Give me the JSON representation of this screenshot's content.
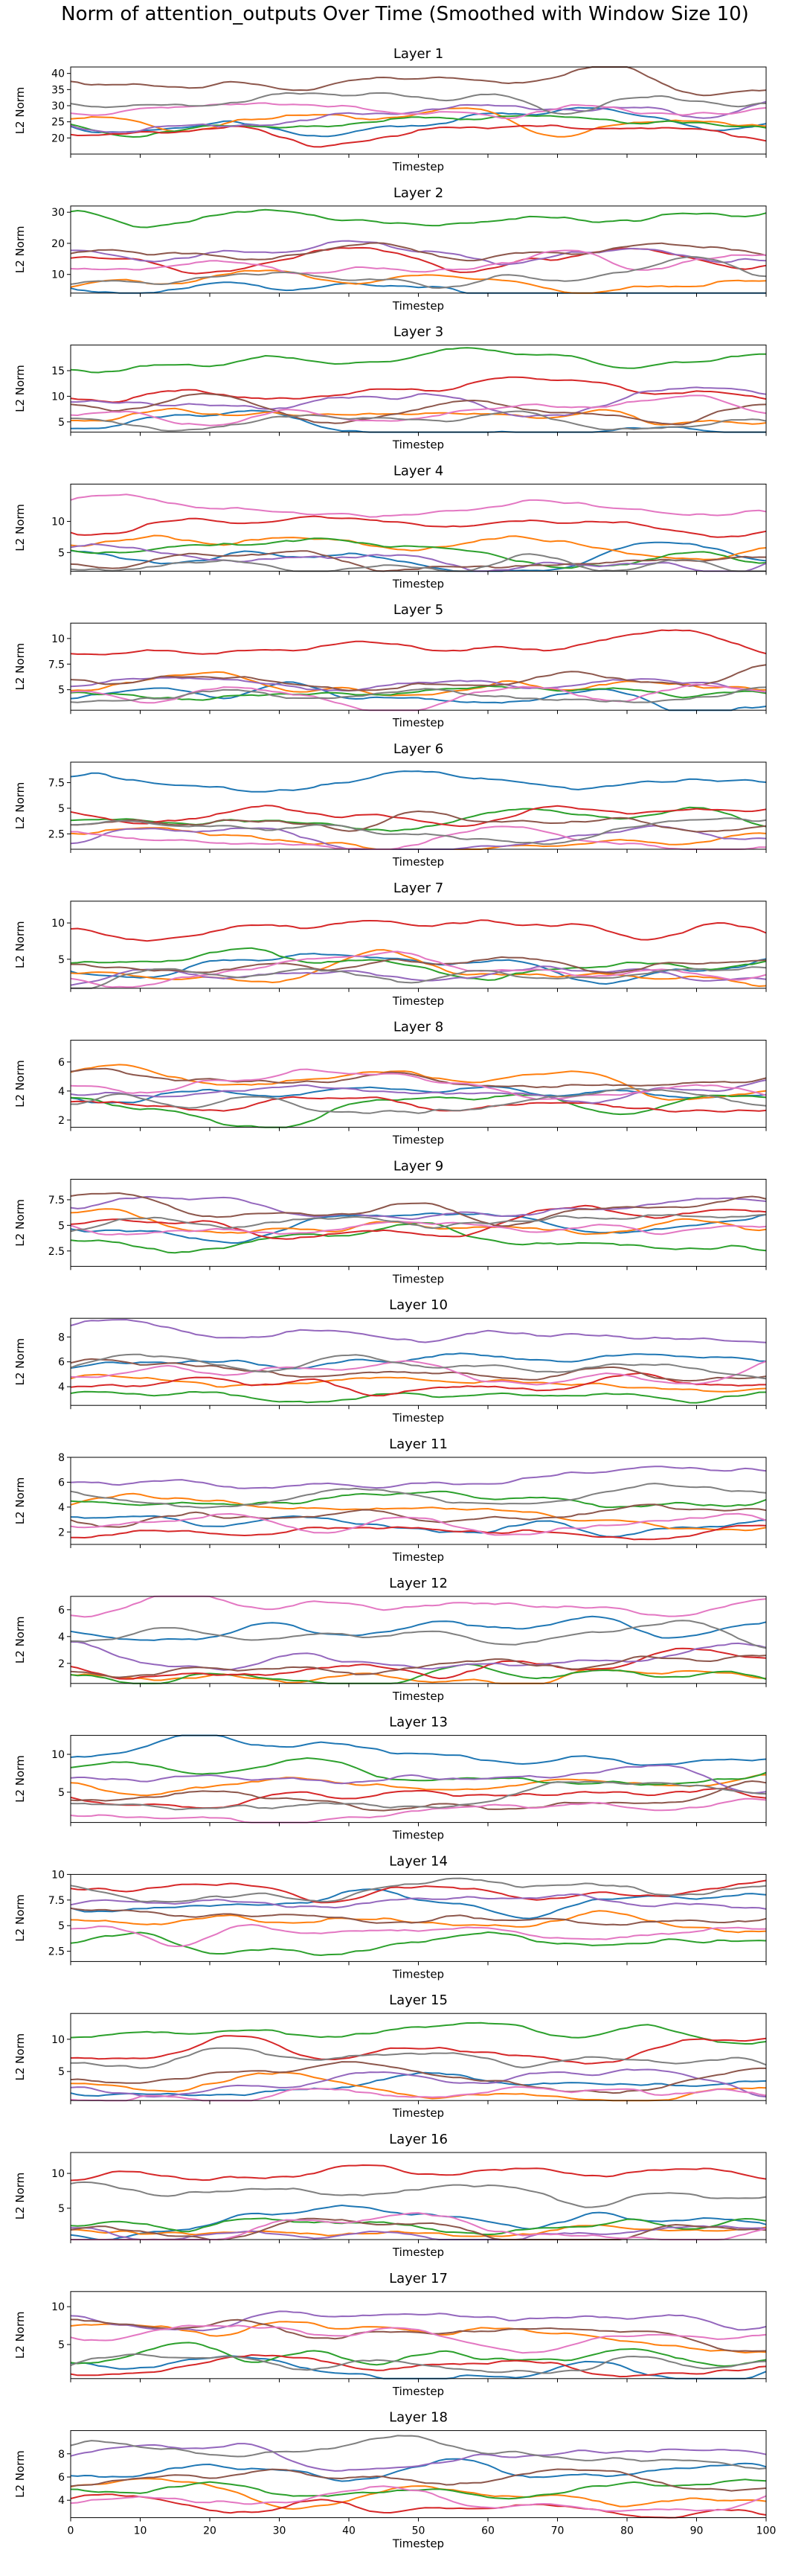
{
  "title": "Norm of attention_outputs Over Time (Smoothed with Window Size 10)",
  "chart_data": {
    "type": "line",
    "xlabel": "Timestep",
    "ylabel": "L2 Norm",
    "xlim": [
      0,
      100
    ],
    "x_ticks": [
      0,
      10,
      20,
      30,
      40,
      50,
      60,
      70,
      80,
      90,
      100
    ],
    "x_tick_labels_shown_only_on_last": true,
    "series_colors": [
      "#1f77b4",
      "#ff7f0e",
      "#2ca02c",
      "#d62728",
      "#9467bd",
      "#8c564b",
      "#e377c2",
      "#7f7f7f"
    ],
    "legend": "none",
    "grid": false,
    "subplots": [
      {
        "title": "Layer 1",
        "ylim": [
          15,
          42
        ],
        "yticks": [
          20,
          25,
          30,
          35,
          40
        ],
        "series_means": [
          26,
          25,
          23,
          22,
          26,
          37,
          28,
          31
        ]
      },
      {
        "title": "Layer 2",
        "ylim": [
          4,
          32
        ],
        "yticks": [
          10,
          20,
          30
        ],
        "series_means": [
          6,
          10,
          27,
          16,
          18,
          17,
          13,
          8
        ]
      },
      {
        "title": "Layer 3",
        "ylim": [
          3,
          20
        ],
        "yticks": [
          5,
          10,
          15
        ],
        "series_means": [
          4,
          6,
          16,
          10,
          9,
          8,
          7,
          5
        ]
      },
      {
        "title": "Layer 4",
        "ylim": [
          2,
          16
        ],
        "yticks": [
          5,
          10
        ],
        "series_means": [
          4.5,
          6,
          5,
          9,
          3.5,
          3.2,
          13,
          3
        ]
      },
      {
        "title": "Layer 5",
        "ylim": [
          3,
          11.5
        ],
        "yticks": [
          5.0,
          7.5,
          10.0
        ],
        "series_means": [
          4.5,
          5.5,
          4.5,
          9,
          5.5,
          6,
          4.5,
          4.2
        ]
      },
      {
        "title": "Layer 6",
        "ylim": [
          1,
          9.5
        ],
        "yticks": [
          2.5,
          5.0,
          7.5
        ],
        "series_means": [
          7.5,
          2.5,
          3.5,
          4.5,
          1.8,
          3.5,
          2,
          3
        ]
      },
      {
        "title": "Layer 7",
        "ylim": [
          1,
          13
        ],
        "yticks": [
          5,
          10
        ],
        "series_means": [
          4.5,
          3,
          4,
          9,
          2.5,
          4.5,
          3.5,
          2.5
        ]
      },
      {
        "title": "Layer 8",
        "ylim": [
          1.5,
          7.5
        ],
        "yticks": [
          2,
          4,
          6
        ],
        "series_means": [
          3.8,
          4.8,
          3,
          3.2,
          4,
          5,
          4.5,
          3.5
        ]
      },
      {
        "title": "Layer 9",
        "ylim": [
          1,
          9.5
        ],
        "yticks": [
          2.5,
          5.0,
          7.5
        ],
        "series_means": [
          5,
          5.5,
          3.5,
          5,
          7,
          6.5,
          5,
          5
        ]
      },
      {
        "title": "Layer 10",
        "ylim": [
          2.5,
          9.5
        ],
        "yticks": [
          4,
          6,
          8
        ],
        "series_means": [
          6,
          4,
          3.5,
          4,
          8,
          5,
          5,
          5.5
        ]
      },
      {
        "title": "Layer 11",
        "ylim": [
          1,
          8
        ],
        "yticks": [
          2,
          4,
          6,
          8
        ],
        "series_means": [
          3,
          3.5,
          4.5,
          2,
          6,
          3.5,
          3,
          5
        ]
      },
      {
        "title": "Layer 12",
        "ylim": [
          0.5,
          7
        ],
        "yticks": [
          2,
          4,
          6
        ],
        "series_means": [
          4.5,
          1,
          1,
          1.5,
          2.5,
          2,
          6.2,
          4
        ]
      },
      {
        "title": "Layer 13",
        "ylim": [
          1,
          12.5
        ],
        "yticks": [
          5,
          10
        ],
        "series_means": [
          10,
          6,
          8,
          5,
          7,
          5,
          3,
          4
        ]
      },
      {
        "title": "Layer 14",
        "ylim": [
          1.5,
          10
        ],
        "yticks": [
          2.5,
          5.0,
          7.5,
          10.0
        ],
        "series_means": [
          7.5,
          5.5,
          3,
          8.5,
          6.5,
          6,
          4,
          8.5
        ]
      },
      {
        "title": "Layer 15",
        "ylim": [
          0.5,
          14
        ],
        "yticks": [
          5,
          10
        ],
        "series_means": [
          3,
          3,
          11,
          8,
          2.5,
          4,
          2,
          7
        ]
      },
      {
        "title": "Layer 16",
        "ylim": [
          0.5,
          13
        ],
        "yticks": [
          5,
          10
        ],
        "series_means": [
          1.5,
          1.8,
          2.5,
          10,
          1.5,
          1.2,
          1.5,
          7
        ]
      },
      {
        "title": "Layer 17",
        "ylim": [
          0.5,
          12
        ],
        "yticks": [
          5,
          10
        ],
        "series_means": [
          2,
          6.5,
          3.5,
          2,
          8,
          6.5,
          6,
          2
        ]
      },
      {
        "title": "Layer 18",
        "ylim": [
          2.5,
          10
        ],
        "yticks": [
          4,
          6,
          8
        ],
        "series_means": [
          6.5,
          5,
          5,
          3.5,
          7.5,
          5.5,
          4,
          8
        ]
      }
    ]
  }
}
